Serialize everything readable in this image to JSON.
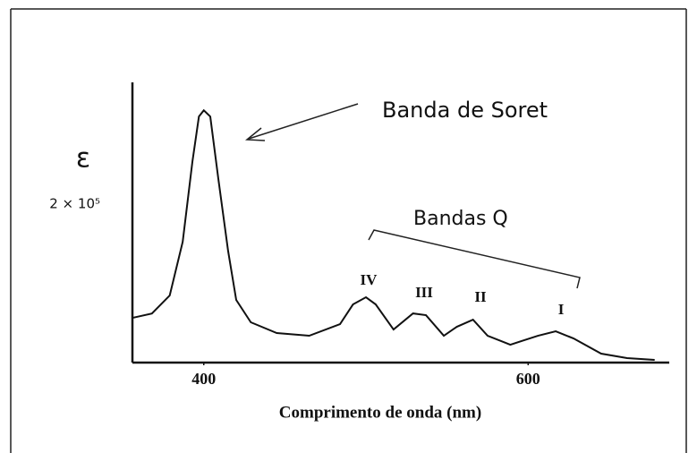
{
  "chart_data": {
    "type": "line",
    "xlabel": "Comprimento de onda (nm)",
    "ylabel": "ε",
    "annotations": [
      "Banda de Soret",
      "Bandas Q",
      "IV",
      "III",
      "II",
      "I"
    ],
    "x": [
      356,
      368,
      379,
      387,
      393,
      397,
      400,
      404,
      409,
      415,
      420,
      429,
      445,
      465,
      484,
      492,
      500,
      506,
      517,
      529,
      537,
      548,
      556,
      566,
      575,
      589,
      606,
      617,
      628,
      645,
      661,
      678
    ],
    "series": [
      {
        "color": "#111111",
        "values": [
          56500,
          62000,
          84800,
          152600,
          254000,
          310800,
          318700,
          310800,
          231700,
          141000,
          79100,
          50900,
          37300,
          33900,
          48600,
          73500,
          82500,
          73500,
          41800,
          62100,
          59900,
          33900,
          45200,
          54200,
          33900,
          22600,
          33900,
          39500,
          30500,
          11300,
          5650,
          3400
        ]
      }
    ],
    "xlim": [
      356,
      687
    ],
    "xticks": [
      400,
      600
    ],
    "ylim": [
      0,
      354000
    ],
    "yticks": [
      {
        "value": 200000,
        "label": "2 × 10⁵"
      }
    ],
    "grid": false
  }
}
